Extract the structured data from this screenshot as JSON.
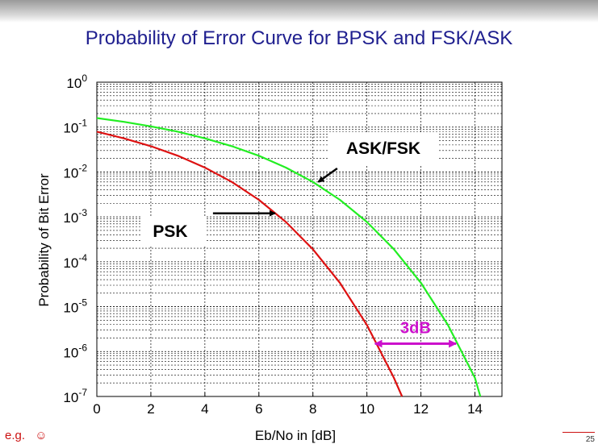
{
  "slide": {
    "title": "Probability of Error Curve for BPSK and FSK/ASK",
    "footer_note": "e.g.",
    "footer_icon": "smiley-icon",
    "page_number": "25"
  },
  "colors": {
    "psk": "#dd1111",
    "ask_fsk": "#22ee22",
    "annotation": "#cc11cc",
    "arrow": "#000000",
    "title": "#1f1f8f"
  },
  "chart_data": {
    "type": "line",
    "title": "",
    "xlabel": "Eb/No in [dB]",
    "ylabel": "Probability of Bit Error",
    "xlim": [
      0,
      15
    ],
    "ylim_exponent": [
      -7,
      0
    ],
    "y_scale": "log10",
    "x_ticks": [
      "0",
      "2",
      "4",
      "6",
      "8",
      "10",
      "12",
      "14"
    ],
    "y_ticks": [
      {
        "base": "10",
        "exp": "0"
      },
      {
        "base": "10",
        "exp": "-1"
      },
      {
        "base": "10",
        "exp": "-2"
      },
      {
        "base": "10",
        "exp": "-3"
      },
      {
        "base": "10",
        "exp": "-4"
      },
      {
        "base": "10",
        "exp": "-5"
      },
      {
        "base": "10",
        "exp": "-6"
      },
      {
        "base": "10",
        "exp": "-7"
      }
    ],
    "grid": true,
    "series": [
      {
        "name": "PSK",
        "color_key": "psk",
        "x": [
          0,
          1,
          2,
          3,
          4,
          5,
          6,
          7,
          8,
          9,
          10,
          11,
          11.3
        ],
        "y": [
          0.079,
          0.056,
          0.0375,
          0.023,
          0.0125,
          0.006,
          0.0024,
          0.00077,
          0.00019,
          3.4e-05,
          3.9e-06,
          2.6e-07,
          1e-07
        ]
      },
      {
        "name": "ASK/FSK",
        "color_key": "ask_fsk",
        "x": [
          0,
          1,
          2,
          3,
          4,
          5,
          6,
          7,
          8,
          9,
          10,
          11,
          12,
          13,
          14,
          14.2
        ],
        "y": [
          0.159,
          0.131,
          0.104,
          0.079,
          0.056,
          0.0375,
          0.023,
          0.0125,
          0.006,
          0.0024,
          0.00077,
          0.00019,
          3.4e-05,
          3.9e-06,
          2.6e-07,
          1e-07
        ]
      }
    ],
    "annotations": [
      {
        "text": "ASK/FSK",
        "arrow_from": [
          8.9,
          0.012
        ],
        "arrow_to": [
          8.2,
          0.006
        ]
      },
      {
        "text": "PSK",
        "arrow_from": [
          4.3,
          0.0012
        ],
        "arrow_to": [
          6.6,
          0.0012
        ]
      },
      {
        "text": "3dB",
        "span_x": [
          10.3,
          13.3
        ],
        "y": 1.5e-06
      }
    ]
  }
}
